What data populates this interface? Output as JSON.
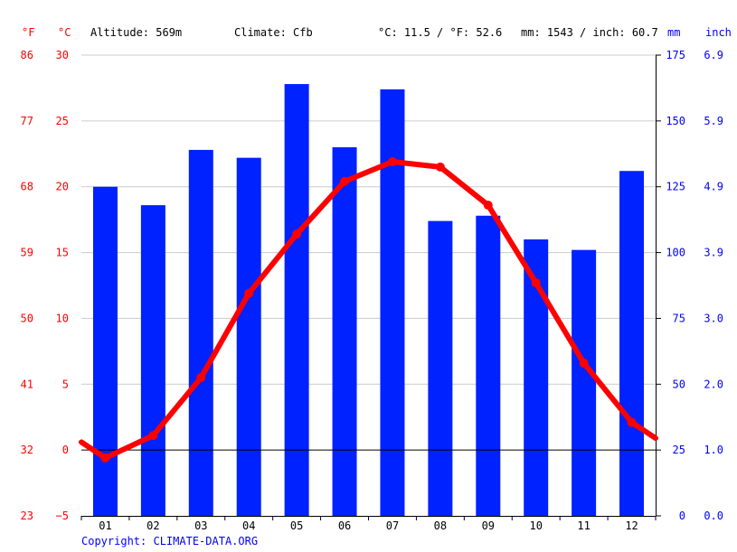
{
  "header": {
    "unit_f": "°F",
    "unit_c": "°C",
    "altitude": "Altitude: 569m",
    "climate": "Climate: Cfb",
    "temp_avg": "°C: 11.5 / °F: 52.6",
    "precip_avg": "mm: 1543 / inch: 60.7",
    "unit_mm": "mm",
    "unit_inch": "inch"
  },
  "copyright": "Copyright: CLIMATE-DATA.ORG",
  "colors": {
    "temperature": "#ff0000",
    "precipitation": "#0022ff",
    "grid": "#cccccc",
    "zero_line": "#000000"
  },
  "chart_data": {
    "type": "bar",
    "categories": [
      "01",
      "02",
      "03",
      "04",
      "05",
      "06",
      "07",
      "08",
      "09",
      "10",
      "11",
      "12"
    ],
    "series": [
      {
        "type": "bar",
        "axis": "right",
        "values": [
          125,
          118,
          139,
          136,
          164,
          140,
          162,
          112,
          114,
          105,
          101,
          131
        ]
      },
      {
        "type": "line",
        "axis": "left",
        "values": [
          -0.6,
          1.1,
          5.5,
          11.9,
          16.4,
          20.4,
          21.9,
          21.5,
          18.6,
          12.7,
          6.6,
          2.1
        ]
      }
    ],
    "line_edges": {
      "start": 0.6,
      "end": 0.9
    },
    "y_left": {
      "ylim": [
        -5,
        30
      ],
      "ticks": [
        -5,
        0,
        5,
        10,
        15,
        20,
        25,
        30
      ]
    },
    "y_far_left": {
      "ticks": [
        23,
        32,
        41,
        50,
        59,
        68,
        77,
        86
      ]
    },
    "y_right": {
      "ylim": [
        0,
        175
      ],
      "ticks": [
        0,
        25,
        50,
        75,
        100,
        125,
        150,
        175
      ]
    },
    "y_far_right": {
      "ticks": [
        "0.0",
        "1.0",
        "2.0",
        "3.0",
        "3.9",
        "4.9",
        "5.9",
        "6.9"
      ]
    },
    "grid": true,
    "legend": "none"
  }
}
